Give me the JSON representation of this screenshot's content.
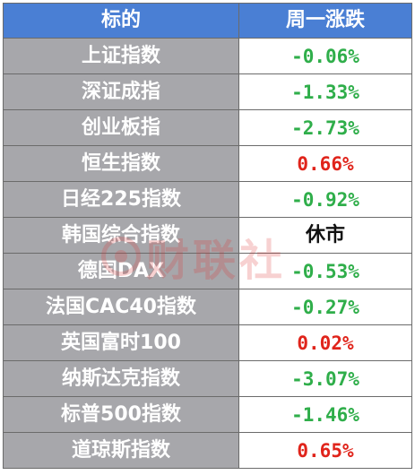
{
  "header": {
    "col_name": "标的",
    "col_change": "周一涨跌"
  },
  "rows": [
    {
      "name": "上证指数",
      "change": "-0.06%",
      "dir": "down"
    },
    {
      "name": "深证成指",
      "change": "-1.33%",
      "dir": "down"
    },
    {
      "name": "创业板指",
      "change": "-2.73%",
      "dir": "down"
    },
    {
      "name": "恒生指数",
      "change": "0.66%",
      "dir": "up"
    },
    {
      "name": "日经225指数",
      "change": "-0.92%",
      "dir": "down"
    },
    {
      "name": "韩国综合指数",
      "change": "休市",
      "dir": "closed"
    },
    {
      "name": "德国DAX",
      "change": "-0.53%",
      "dir": "down"
    },
    {
      "name": "法国CAC40指数",
      "change": "-0.27%",
      "dir": "down"
    },
    {
      "name": "英国富时100",
      "change": "0.02%",
      "dir": "up"
    },
    {
      "name": "纳斯达克指数",
      "change": "-3.07%",
      "dir": "down"
    },
    {
      "name": "标普500指数",
      "change": "-1.46%",
      "dir": "down"
    },
    {
      "name": "道琼斯指数",
      "change": "0.65%",
      "dir": "up"
    }
  ],
  "watermark": {
    "text": "财联社",
    "icon": "cls-logo-icon"
  },
  "colors": {
    "header_bg": "#4a7fd4",
    "name_bg": "#a7a7ab",
    "down": "#2fae4a",
    "up": "#e0241b"
  }
}
